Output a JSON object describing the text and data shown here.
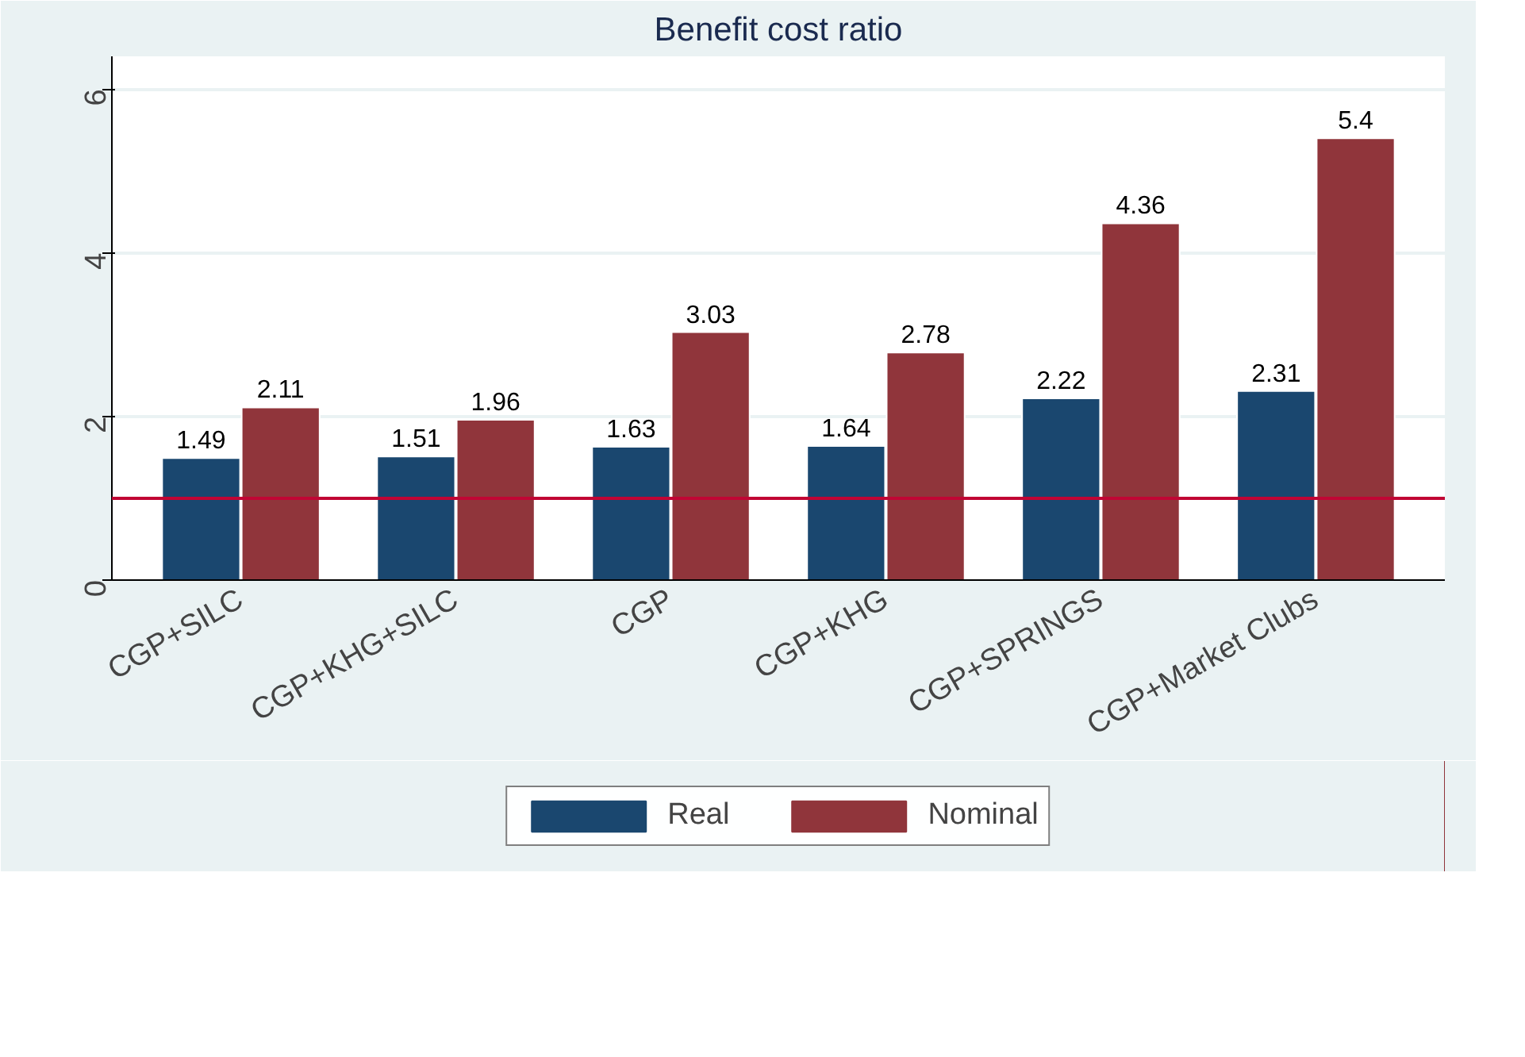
{
  "chart_data": {
    "type": "bar",
    "title": "Benefit cost ratio",
    "categories": [
      "CGP+SILC",
      "CGP+KHG+SILC",
      "CGP",
      "CGP+KHG",
      "CGP+SPRINGS",
      "CGP+Market Clubs"
    ],
    "series": [
      {
        "name": "Real",
        "color": "#1a476f",
        "values": [
          1.49,
          1.51,
          1.63,
          1.64,
          2.22,
          2.31
        ]
      },
      {
        "name": "Nominal",
        "color": "#90353b",
        "values": [
          2.11,
          1.96,
          3.03,
          2.78,
          4.36,
          5.4
        ]
      }
    ],
    "ylim": [
      0,
      6.4
    ],
    "yticks": [
      0,
      2,
      4,
      6
    ],
    "grid": "y",
    "legend": "bottom",
    "data_labels": true,
    "ref_lines": [
      {
        "axis": "y",
        "value": 1,
        "color": "#c10534"
      }
    ]
  }
}
